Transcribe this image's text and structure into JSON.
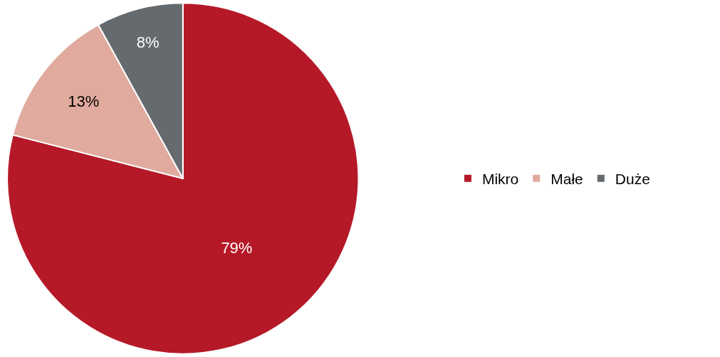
{
  "chart_data": {
    "type": "pie",
    "categories": [
      "Mikro",
      "Małe",
      "Duże"
    ],
    "values": [
      79,
      13,
      8
    ],
    "colors": [
      "#b51928",
      "#e0aa9e",
      "#646a6e"
    ],
    "value_labels": [
      "79%",
      "13%",
      "8%"
    ],
    "legend": "right"
  }
}
